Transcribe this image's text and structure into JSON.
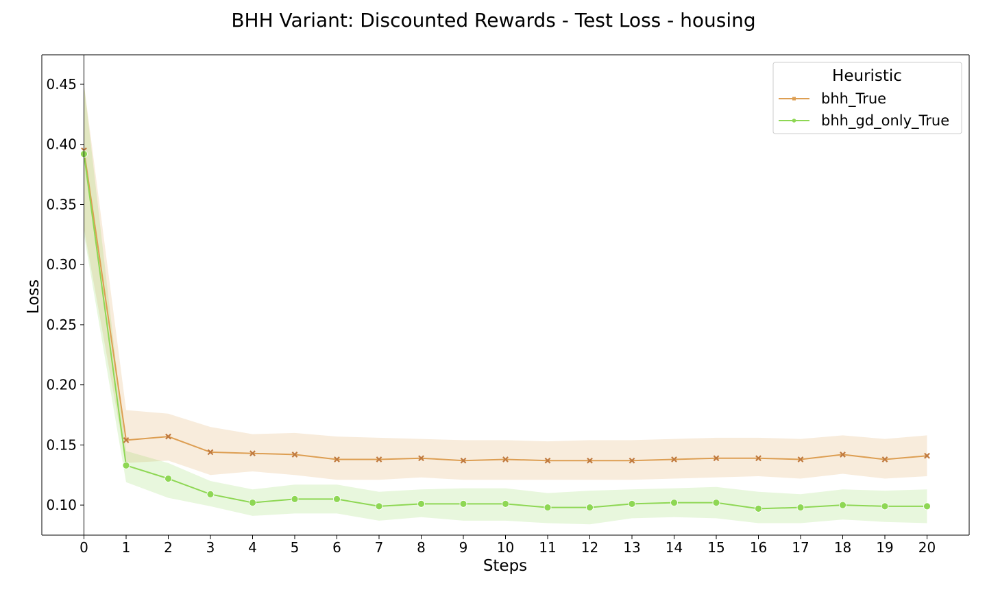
{
  "chart_data": {
    "type": "line",
    "title": "BHH Variant: Discounted Rewards - Test Loss - housing",
    "xlabel": "Steps",
    "ylabel": "Loss",
    "xlim": [
      -1,
      21
    ],
    "ylim": [
      0.075,
      0.4745
    ],
    "x": [
      0,
      1,
      2,
      3,
      4,
      5,
      6,
      7,
      8,
      9,
      10,
      11,
      12,
      13,
      14,
      15,
      16,
      17,
      18,
      19,
      20
    ],
    "yticks": [
      0.1,
      0.15,
      0.2,
      0.25,
      0.3,
      0.35,
      0.4,
      0.45
    ],
    "ytick_labels": [
      "0.10",
      "0.15",
      "0.20",
      "0.25",
      "0.30",
      "0.35",
      "0.40",
      "0.45"
    ],
    "xtick_labels": [
      "0",
      "1",
      "2",
      "3",
      "4",
      "5",
      "6",
      "7",
      "8",
      "9",
      "10",
      "11",
      "12",
      "13",
      "14",
      "15",
      "16",
      "17",
      "18",
      "19",
      "20"
    ],
    "grid": false,
    "legend": {
      "title": "Heuristic",
      "placement": "top-right"
    },
    "series": [
      {
        "name": "bhh_True",
        "color": "#dd9e52",
        "marker": "x",
        "values": [
          0.395,
          0.154,
          0.157,
          0.144,
          0.143,
          0.142,
          0.138,
          0.138,
          0.139,
          0.137,
          0.138,
          0.137,
          0.137,
          0.137,
          0.138,
          0.139,
          0.139,
          0.138,
          0.142,
          0.138,
          0.141
        ],
        "lower": [
          0.33,
          0.135,
          0.137,
          0.125,
          0.128,
          0.125,
          0.121,
          0.121,
          0.123,
          0.121,
          0.121,
          0.121,
          0.121,
          0.121,
          0.122,
          0.123,
          0.124,
          0.122,
          0.126,
          0.122,
          0.124
        ],
        "upper": [
          0.45,
          0.179,
          0.176,
          0.165,
          0.159,
          0.16,
          0.157,
          0.156,
          0.155,
          0.154,
          0.154,
          0.153,
          0.154,
          0.154,
          0.155,
          0.156,
          0.156,
          0.155,
          0.158,
          0.155,
          0.158
        ]
      },
      {
        "name": "bhh_gd_only_True",
        "color": "#8ed754",
        "marker": "o",
        "values": [
          0.392,
          0.133,
          0.122,
          0.109,
          0.102,
          0.105,
          0.105,
          0.099,
          0.101,
          0.101,
          0.101,
          0.098,
          0.098,
          0.101,
          0.102,
          0.102,
          0.097,
          0.098,
          0.1,
          0.099,
          0.099
        ],
        "lower": [
          0.325,
          0.119,
          0.106,
          0.099,
          0.091,
          0.093,
          0.093,
          0.087,
          0.09,
          0.087,
          0.087,
          0.085,
          0.084,
          0.089,
          0.09,
          0.089,
          0.085,
          0.085,
          0.088,
          0.086,
          0.085
        ],
        "upper": [
          0.45,
          0.145,
          0.135,
          0.12,
          0.113,
          0.117,
          0.117,
          0.111,
          0.113,
          0.114,
          0.114,
          0.11,
          0.112,
          0.113,
          0.114,
          0.115,
          0.111,
          0.109,
          0.113,
          0.112,
          0.113
        ]
      }
    ]
  }
}
